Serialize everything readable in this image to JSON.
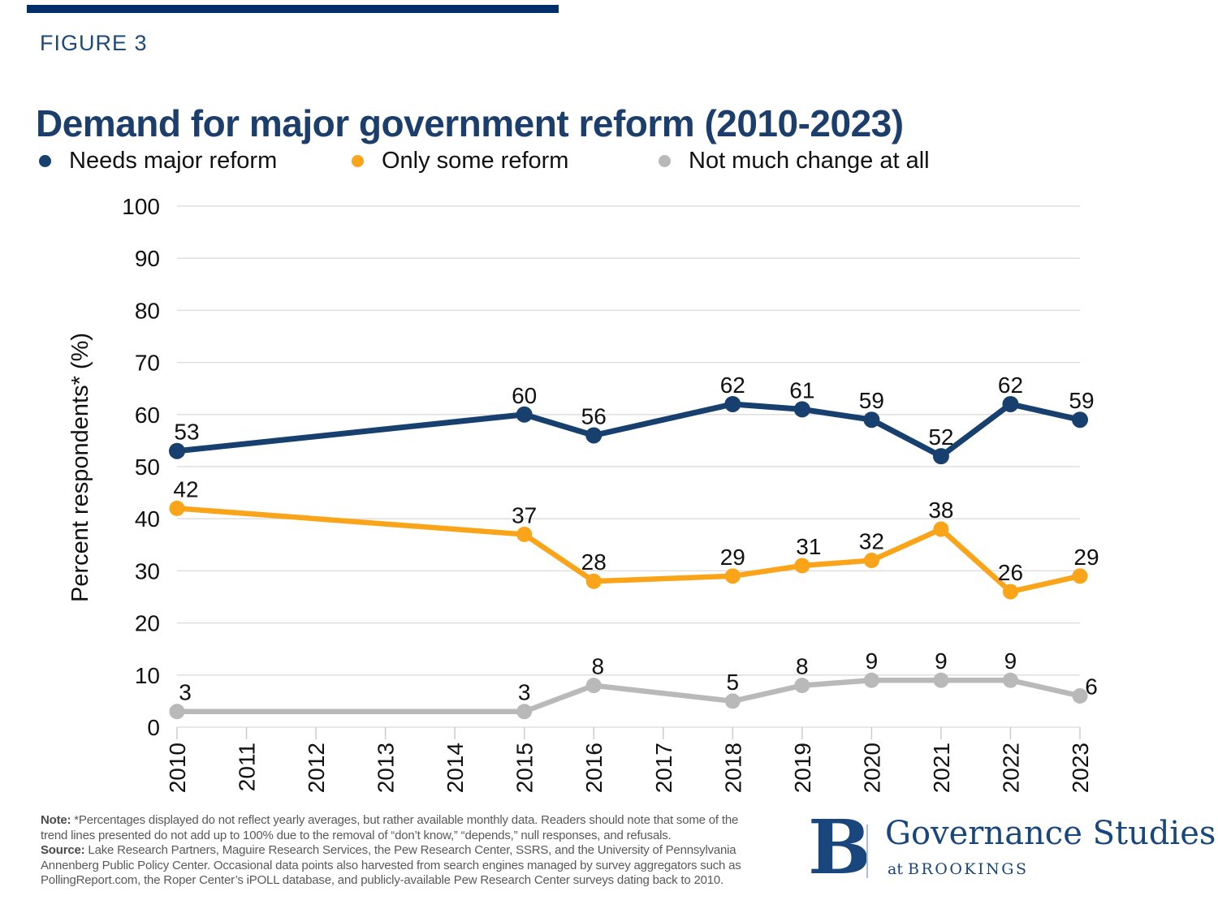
{
  "figure_label": "FIGURE 3",
  "title": "Demand for major government reform (2010-2023)",
  "legend": [
    {
      "label": "Needs major reform",
      "color": "#17406E"
    },
    {
      "label": "Only some reform",
      "color": "#FAA41A"
    },
    {
      "label": "Not much change at all",
      "color": "#B9B9B9"
    }
  ],
  "chart_data": {
    "type": "line",
    "x": [
      2010,
      2015,
      2016,
      2018,
      2019,
      2020,
      2021,
      2022,
      2023
    ],
    "series": [
      {
        "name": "Needs major reform",
        "color": "#17406E",
        "values": [
          53,
          60,
          56,
          62,
          61,
          59,
          52,
          62,
          59
        ]
      },
      {
        "name": "Only some reform",
        "color": "#FAA41A",
        "values": [
          42,
          37,
          28,
          29,
          31,
          32,
          38,
          26,
          29
        ]
      },
      {
        "name": "Not much change at all",
        "color": "#B9B9B9",
        "values": [
          3,
          3,
          8,
          5,
          8,
          9,
          9,
          9,
          6
        ]
      }
    ],
    "title": "Demand for major government reform (2010-2023)",
    "xlabel": "",
    "ylabel": "Percent respondents* (%)",
    "ylim": [
      0,
      100
    ],
    "yticks": [
      0,
      10,
      20,
      30,
      40,
      50,
      60,
      70,
      80,
      90,
      100
    ],
    "xlim": [
      2010,
      2023
    ],
    "xticks": [
      "2010",
      "2011",
      "2012",
      "2013",
      "2014",
      "2015",
      "2016",
      "2017",
      "2018",
      "2019",
      "2020",
      "2021",
      "2022",
      "2023"
    ],
    "grid": "horizontal",
    "legend_position": "top",
    "x_tick_rotation": -90
  },
  "footnote": {
    "note_label": "Note:",
    "note_line1": " *Percentages displayed do not reflect yearly averages, but rather available monthly data. Readers should note that some of the",
    "note_line2": "trend lines presented do not add up to 100% due to the removal of “don’t know,” “depends,” null responses, and refusals.",
    "source_label": "Source:",
    "source_line1": " Lake Research Partners, Maguire Research Services, the Pew Research Center, SSRS, and the University of Pennsylvania",
    "source_line2": "Annenberg Public Policy Center. Occasional data points also harvested from search engines managed by survey aggregators such as",
    "source_line3": "PollingReport.com, the Roper Center’s iPOLL database, and publicly-available Pew Research Center surveys dating back to 2010."
  },
  "logo": {
    "initial": "B",
    "name": "Governance Studies",
    "tagline_prefix": "at ",
    "tagline_caps": "BROOKINGS"
  },
  "colors": {
    "top_rule": "#002F6C",
    "figure_label": "#1E4A7B",
    "title": "#1C3E6D",
    "grid": "#DBDBDB",
    "tick": "#CCCCCC",
    "axis_text": "#111111",
    "data_label": "#111111",
    "footnote_text": "#595959",
    "logo_navy": "#19477D",
    "logo_divider": "#A9BFD6"
  }
}
